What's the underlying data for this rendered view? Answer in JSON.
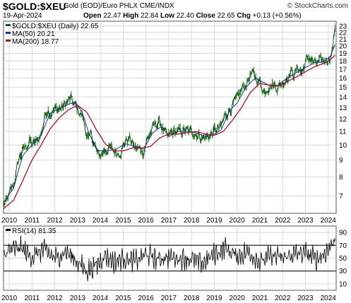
{
  "header": {
    "symbol": "$GOLD:$XEU",
    "description": "Gold (EOD)/Euro PHLX  CME/INDX",
    "watermark": "© StockCharts.com",
    "date": "19-Apr-2024",
    "open_label": "Open",
    "open": "22.47",
    "high_label": "High",
    "high": "22.84",
    "low_label": "Low",
    "low": "22.40",
    "close_label": "Close",
    "close": "22.65",
    "chg_label": "Chg",
    "chg": "+0.13 (+0.56%)"
  },
  "colors": {
    "price": "#1a5a1a",
    "price_up": "#2e8b2e",
    "ma50": "#1c2fa0",
    "ma200": "#b01030",
    "grid": "#d8d8d8"
  },
  "chart_data": [
    {
      "type": "line",
      "legend": [
        {
          "name": "$GOLD:$XEU (Daily) 22.65",
          "color": "#1a5a1a"
        },
        {
          "name": "MA(50) 20.21",
          "color": "#1c2fa0"
        },
        {
          "name": "MA(200) 18.77",
          "color": "#b01030"
        }
      ],
      "legend_placement": "top-left",
      "yscale": "log",
      "ylim": [
        6.2,
        23.8
      ],
      "y_ticks": [
        "7",
        "8",
        "9",
        "10",
        "11",
        "12",
        "13",
        "14",
        "15",
        "16",
        "17",
        "18",
        "19",
        "20",
        "21",
        "22",
        "23"
      ],
      "xlim": [
        2009.75,
        2024.35
      ],
      "x_ticks": [
        "2010",
        "2011",
        "2012",
        "2013",
        "2014",
        "2015",
        "2016",
        "2017",
        "2018",
        "2019",
        "2020",
        "2021",
        "2022",
        "2023",
        "2024"
      ],
      "series": [
        {
          "name": "$GOLD:$XEU",
          "x": [
            2009.75,
            2009.9,
            2010.0,
            2010.2,
            2010.45,
            2010.6,
            2010.9,
            2011.0,
            2011.2,
            2011.4,
            2011.6,
            2011.7,
            2011.8,
            2012.0,
            2012.2,
            2012.4,
            2012.5,
            2012.7,
            2012.85,
            2013.0,
            2013.2,
            2013.35,
            2013.5,
            2013.6,
            2013.75,
            2013.9,
            2014.0,
            2014.2,
            2014.4,
            2014.55,
            2014.75,
            2014.9,
            2015.0,
            2015.1,
            2015.3,
            2015.5,
            2015.7,
            2015.9,
            2016.0,
            2016.2,
            2016.4,
            2016.6,
            2016.8,
            2016.95,
            2017.1,
            2017.3,
            2017.5,
            2017.7,
            2017.9,
            2018.1,
            2018.3,
            2018.5,
            2018.7,
            2018.9,
            2019.0,
            2019.3,
            2019.5,
            2019.7,
            2019.9,
            2020.0,
            2020.2,
            2020.4,
            2020.6,
            2020.75,
            2020.9,
            2021.0,
            2021.2,
            2021.4,
            2021.6,
            2021.8,
            2022.0,
            2022.2,
            2022.35,
            2022.5,
            2022.7,
            2022.85,
            2023.0,
            2023.2,
            2023.4,
            2023.6,
            2023.8,
            2023.95,
            2024.1,
            2024.2,
            2024.3
          ],
          "values": [
            6.6,
            6.7,
            7.0,
            7.6,
            9.2,
            9.6,
            10.3,
            10.0,
            10.2,
            10.8,
            12.5,
            13.0,
            12.6,
            12.8,
            12.9,
            13.1,
            13.4,
            13.8,
            13.2,
            12.8,
            12.3,
            11.2,
            10.2,
            10.8,
            10.0,
            9.2,
            9.3,
            9.7,
            9.8,
            9.6,
            9.5,
            9.7,
            9.9,
            10.3,
            10.5,
            9.8,
            9.7,
            9.6,
            10.2,
            10.9,
            11.5,
            11.8,
            11.0,
            10.4,
            10.8,
            11.0,
            10.9,
            11.1,
            10.9,
            11.0,
            10.8,
            10.5,
            10.6,
            10.8,
            11.0,
            11.3,
            12.4,
            13.0,
            13.4,
            13.6,
            14.7,
            15.4,
            16.4,
            16.2,
            15.8,
            15.6,
            14.5,
            15.4,
            15.2,
            15.1,
            15.5,
            16.2,
            16.8,
            16.4,
            17.2,
            16.6,
            17.8,
            18.5,
            17.6,
            17.7,
            18.0,
            18.3,
            18.7,
            19.8,
            22.65
          ]
        },
        {
          "name": "MA(50)",
          "x": [
            2009.75,
            2010.2,
            2010.6,
            2011.0,
            2011.4,
            2011.8,
            2012.2,
            2012.6,
            2012.9,
            2013.2,
            2013.5,
            2013.9,
            2014.3,
            2014.7,
            2015.1,
            2015.5,
            2015.9,
            2016.3,
            2016.7,
            2017.0,
            2017.4,
            2017.8,
            2018.2,
            2018.6,
            2018.9,
            2019.3,
            2019.7,
            2020.0,
            2020.4,
            2020.8,
            2021.0,
            2021.4,
            2021.8,
            2022.2,
            2022.6,
            2023.0,
            2023.4,
            2023.8,
            2024.1,
            2024.3
          ],
          "values": [
            6.7,
            7.4,
            9.3,
            10.0,
            10.7,
            12.5,
            12.9,
            13.3,
            13.5,
            12.6,
            10.8,
            9.6,
            9.6,
            9.7,
            10.1,
            9.9,
            9.7,
            10.9,
            11.4,
            10.6,
            11.0,
            11.0,
            10.9,
            10.6,
            10.7,
            11.1,
            12.8,
            13.4,
            15.0,
            16.0,
            15.7,
            15.2,
            15.2,
            16.0,
            16.6,
            17.2,
            17.8,
            17.9,
            18.6,
            20.21
          ]
        },
        {
          "name": "MA(200)",
          "x": [
            2009.75,
            2010.2,
            2010.6,
            2011.0,
            2011.4,
            2011.8,
            2012.2,
            2012.6,
            2013.0,
            2013.4,
            2013.8,
            2014.2,
            2014.6,
            2015.0,
            2015.4,
            2015.8,
            2016.2,
            2016.6,
            2017.0,
            2017.4,
            2017.8,
            2018.2,
            2018.6,
            2019.0,
            2019.4,
            2019.8,
            2020.2,
            2020.6,
            2021.0,
            2021.4,
            2021.8,
            2022.2,
            2022.6,
            2023.0,
            2023.4,
            2023.8,
            2024.1,
            2024.3
          ],
          "values": [
            6.4,
            6.8,
            7.8,
            9.0,
            10.0,
            11.2,
            12.1,
            12.8,
            13.2,
            12.6,
            11.2,
            10.1,
            9.6,
            9.6,
            9.8,
            9.8,
            9.9,
            10.5,
            10.8,
            10.8,
            10.9,
            11.0,
            10.8,
            10.7,
            11.0,
            11.9,
            13.0,
            14.5,
            15.4,
            15.2,
            15.1,
            15.6,
            16.1,
            16.7,
            17.3,
            17.7,
            18.2,
            18.77
          ]
        }
      ]
    },
    {
      "type": "line",
      "legend": [
        {
          "name": "RSI(14) 81.35",
          "color": "#000000"
        }
      ],
      "legend_placement": "top-left",
      "ylim": [
        0,
        100
      ],
      "y_ticks": [
        "10",
        "30",
        "50",
        "70",
        "90"
      ],
      "reference_lines": [
        30,
        70
      ],
      "x_ticks": [
        "2010",
        "2011",
        "2012",
        "2013",
        "2014",
        "2015",
        "2016",
        "2017",
        "2018",
        "2019",
        "2020",
        "2021",
        "2022",
        "2023",
        "2024"
      ],
      "xlim": [
        2009.75,
        2024.35
      ],
      "series": [
        {
          "name": "RSI(14)",
          "x": [
            2009.75,
            2010.0,
            2010.5,
            2011.0,
            2011.5,
            2012.0,
            2012.5,
            2013.0,
            2013.4,
            2013.8,
            2014.2,
            2014.6,
            2015.0,
            2015.5,
            2016.0,
            2016.5,
            2017.0,
            2017.5,
            2018.0,
            2018.5,
            2019.0,
            2019.5,
            2020.0,
            2020.5,
            2021.0,
            2021.5,
            2022.0,
            2022.5,
            2023.0,
            2023.5,
            2024.0,
            2024.3
          ],
          "values": [
            55,
            62,
            66,
            52,
            64,
            50,
            60,
            44,
            30,
            38,
            55,
            44,
            50,
            45,
            56,
            48,
            52,
            50,
            48,
            42,
            56,
            66,
            52,
            60,
            44,
            54,
            50,
            56,
            58,
            48,
            62,
            81.35
          ]
        }
      ]
    }
  ]
}
